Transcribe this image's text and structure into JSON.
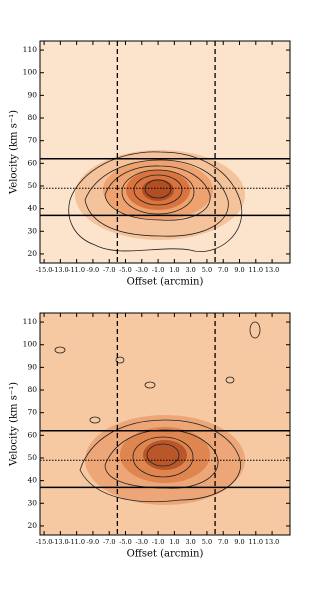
{
  "chart_data": [
    {
      "type": "contour",
      "xlabel": "Offset (arcmin)",
      "ylabel": "Velocity (km s⁻¹)",
      "xlim": [
        -15.5,
        15.2
      ],
      "ylim": [
        16,
        114
      ],
      "xticks": [
        {
          "value": -15,
          "label": "-15.0"
        },
        {
          "value": -13,
          "label": "-13.0"
        },
        {
          "value": -11,
          "label": "-11.0"
        },
        {
          "value": -9,
          "label": "-9.0"
        },
        {
          "value": -7,
          "label": "-7.0"
        },
        {
          "value": -5,
          "label": "-5.0"
        },
        {
          "value": -3,
          "label": "-3.0"
        },
        {
          "value": -1,
          "label": "-1.0"
        },
        {
          "value": 1,
          "label": "1.0"
        },
        {
          "value": 3,
          "label": "3.0"
        },
        {
          "value": 5,
          "label": "5.0"
        },
        {
          "value": 7,
          "label": "7.0"
        },
        {
          "value": 9,
          "label": "9.0"
        },
        {
          "value": 11,
          "label": "11.0"
        },
        {
          "value": 13,
          "label": "13.0"
        }
      ],
      "yticks": [
        20,
        30,
        40,
        50,
        60,
        70,
        80,
        90,
        100,
        110
      ],
      "hlines": [
        37,
        62
      ],
      "hlines_dotted": [
        49
      ],
      "vlines_dashed": [
        -6,
        6
      ]
    },
    {
      "type": "contour",
      "xlabel": "Offset (arcmin)",
      "ylabel": "Velocity (km s⁻¹)",
      "xlim": [
        -15.5,
        15.2
      ],
      "ylim": [
        16,
        114
      ],
      "xticks": [
        {
          "value": -15,
          "label": "-15.0"
        },
        {
          "value": -13,
          "label": "-13.0"
        },
        {
          "value": -11,
          "label": "-11.0"
        },
        {
          "value": -9,
          "label": "-9.0"
        },
        {
          "value": -7,
          "label": "-7.0"
        },
        {
          "value": -5,
          "label": "-5.0"
        },
        {
          "value": -3,
          "label": "-3.0"
        },
        {
          "value": -1,
          "label": "-1.0"
        },
        {
          "value": 1,
          "label": "1.0"
        },
        {
          "value": 3,
          "label": "3.0"
        },
        {
          "value": 5,
          "label": "5.0"
        },
        {
          "value": 7,
          "label": "7.0"
        },
        {
          "value": 9,
          "label": "9.0"
        },
        {
          "value": 11,
          "label": "11.0"
        },
        {
          "value": 13,
          "label": "13.0"
        }
      ],
      "yticks": [
        20,
        30,
        40,
        50,
        60,
        70,
        80,
        90,
        100,
        110
      ],
      "hlines": [
        37,
        62
      ],
      "hlines_dotted": [
        49
      ],
      "vlines_dashed": [
        -6,
        6
      ]
    }
  ]
}
